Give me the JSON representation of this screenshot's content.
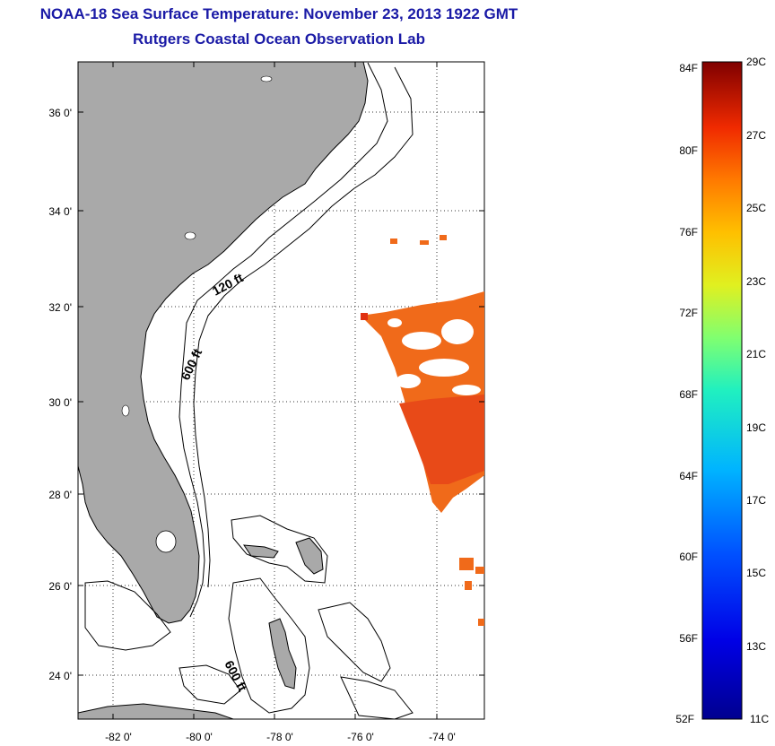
{
  "header": {
    "title": "NOAA-18 Sea Surface Temperature:  November 23, 2013 1922 GMT",
    "subtitle": "Rutgers Coastal Ocean Observation Lab"
  },
  "map": {
    "lat_ticks": [
      "36 0'",
      "34 0'",
      "32 0'",
      "30 0'",
      "28 0'",
      "26 0'",
      "24 0'"
    ],
    "lon_ticks": [
      "-82 0'",
      "-80 0'",
      "-78 0'",
      "-76 0'",
      "-74 0'"
    ],
    "isobaths": [
      "120 ft",
      "600 ft",
      "600 ft"
    ],
    "colors": {
      "land": "#a9a9a9",
      "sst_main": "#f06a1a",
      "sst_warm": "#e83e16",
      "cloud": "#ffffff"
    }
  },
  "colorbar": {
    "fahrenheit": [
      "84F",
      "80F",
      "76F",
      "72F",
      "68F",
      "64F",
      "60F",
      "56F",
      "52F"
    ],
    "celsius": [
      "29C",
      "27C",
      "25C",
      "23C",
      "21C",
      "19C",
      "17C",
      "15C",
      "13C",
      "11C"
    ]
  }
}
